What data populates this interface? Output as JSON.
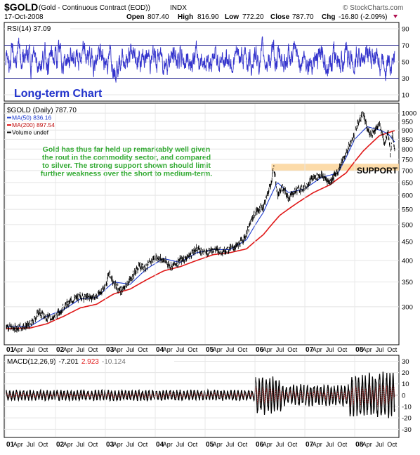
{
  "header": {
    "symbol": "$GOLD",
    "description": "(Gold - Continuous Contract (EOD))",
    "exchange": "INDX",
    "date": "17-Oct-2008",
    "copyright": "© StockCharts.com",
    "open_label": "Open",
    "open": "807.40",
    "high_label": "High",
    "high": "816.90",
    "low_label": "Low",
    "low": "772.20",
    "close_label": "Close",
    "close": "787.70",
    "chg_label": "Chg",
    "chg": "-16.80 (-2.09%)"
  },
  "rsi_panel": {
    "label": "RSI(14) 37.09",
    "ticks": [
      "90",
      "70",
      "50",
      "30",
      "10"
    ],
    "overbought": 70,
    "oversold": 30
  },
  "price_panel": {
    "title": "Long-term Chart",
    "legend": [
      {
        "label": "$GOLD (Daily) 787.70",
        "color": "#000000"
      },
      {
        "label": "MA(50) 836.16",
        "color": "#1f3ccf"
      },
      {
        "label": "MA(200) 897.54",
        "color": "#e01818"
      },
      {
        "label": "Volume undef",
        "color": "#000000"
      }
    ],
    "annotation": [
      "Gold has thus far held up remarkably well given",
      "the rout in the commodity sector, and compared",
      "to silver. The strong support shown should limit",
      "further weakness over the short to medium-term."
    ],
    "support_label": "SUPPORT",
    "y_ticks": [
      "1000",
      "950",
      "900",
      "850",
      "800",
      "750",
      "700",
      "650",
      "600",
      "550",
      "500",
      "450",
      "400",
      "350",
      "300"
    ],
    "annotation_color": "#33aa33",
    "title_color": "#2233cc"
  },
  "macd_panel": {
    "label": "MACD(12,26,9)",
    "macd": "-7.201",
    "signal": "2.923",
    "hist": "-10.124",
    "ticks": [
      "30",
      "20",
      "10",
      "0",
      "-10",
      "-20",
      "-30"
    ]
  },
  "x_axis": {
    "labels": [
      {
        "t": "01",
        "bold": true
      },
      {
        "t": "Apr"
      },
      {
        "t": "Jul"
      },
      {
        "t": "Oct"
      },
      {
        "t": "02",
        "bold": true
      },
      {
        "t": "Apr"
      },
      {
        "t": "Jul"
      },
      {
        "t": "Oct"
      },
      {
        "t": "03",
        "bold": true
      },
      {
        "t": "Apr"
      },
      {
        "t": "Jul"
      },
      {
        "t": "Oct"
      },
      {
        "t": "04",
        "bold": true
      },
      {
        "t": "Apr"
      },
      {
        "t": "Jul"
      },
      {
        "t": "Oct"
      },
      {
        "t": "05",
        "bold": true
      },
      {
        "t": "Apr"
      },
      {
        "t": "Jul"
      },
      {
        "t": "Oct"
      },
      {
        "t": "06",
        "bold": true
      },
      {
        "t": "Apr"
      },
      {
        "t": "Jul"
      },
      {
        "t": "Oct"
      },
      {
        "t": "07",
        "bold": true
      },
      {
        "t": "Apr"
      },
      {
        "t": "Jul"
      },
      {
        "t": "Oct"
      },
      {
        "t": "08",
        "bold": true
      },
      {
        "t": "Apr"
      },
      {
        "t": "Jul"
      },
      {
        "t": "Oct"
      }
    ]
  },
  "chart_data": {
    "type": "line",
    "title": "$GOLD (Gold - Continuous Contract (EOD))",
    "x_unit": "year",
    "y_scale": "log",
    "ylim": [
      240,
      1050
    ],
    "support_zone": [
      700,
      730
    ],
    "series": [
      {
        "name": "$GOLD (Daily)",
        "x": [
          2001.0,
          2001.17,
          2001.33,
          2001.5,
          2001.67,
          2001.83,
          2002.0,
          2002.17,
          2002.33,
          2002.5,
          2002.67,
          2002.83,
          2003.0,
          2003.08,
          2003.17,
          2003.33,
          2003.5,
          2003.67,
          2003.83,
          2004.0,
          2004.17,
          2004.33,
          2004.5,
          2004.67,
          2004.83,
          2005.0,
          2005.17,
          2005.33,
          2005.5,
          2005.67,
          2005.83,
          2006.0,
          2006.17,
          2006.33,
          2006.37,
          2006.45,
          2006.55,
          2006.67,
          2006.83,
          2007.0,
          2007.17,
          2007.33,
          2007.5,
          2007.67,
          2007.83,
          2008.0,
          2008.08,
          2008.17,
          2008.25,
          2008.33,
          2008.5,
          2008.6,
          2008.67,
          2008.72,
          2008.75,
          2008.8
        ],
        "values": [
          268,
          262,
          265,
          268,
          290,
          280,
          282,
          300,
          312,
          320,
          318,
          320,
          340,
          370,
          345,
          330,
          355,
          385,
          385,
          410,
          400,
          385,
          400,
          410,
          430,
          420,
          430,
          425,
          430,
          440,
          470,
          540,
          560,
          650,
          720,
          600,
          630,
          590,
          620,
          630,
          670,
          680,
          650,
          700,
          780,
          880,
          950,
          1000,
          900,
          880,
          930,
          830,
          900,
          760,
          880,
          790
        ]
      },
      {
        "name": "MA(50)",
        "x": [
          2001.0,
          2001.5,
          2001.83,
          2002.17,
          2002.5,
          2002.83,
          2003.17,
          2003.5,
          2003.83,
          2004.17,
          2004.5,
          2004.83,
          2005.17,
          2005.5,
          2005.83,
          2006.17,
          2006.45,
          2006.67,
          2007.0,
          2007.33,
          2007.67,
          2007.83,
          2008.0,
          2008.25,
          2008.5,
          2008.67,
          2008.8
        ],
        "values": [
          265,
          266,
          283,
          295,
          315,
          318,
          350,
          345,
          380,
          405,
          395,
          420,
          428,
          428,
          455,
          540,
          650,
          610,
          625,
          670,
          690,
          760,
          850,
          920,
          900,
          880,
          836
        ]
      },
      {
        "name": "MA(200)",
        "x": [
          2001.0,
          2001.5,
          2001.83,
          2002.17,
          2002.5,
          2002.83,
          2003.17,
          2003.5,
          2003.83,
          2004.17,
          2004.5,
          2004.83,
          2005.17,
          2005.5,
          2005.83,
          2006.17,
          2006.5,
          2006.83,
          2007.17,
          2007.5,
          2007.83,
          2008.17,
          2008.5,
          2008.8
        ],
        "values": [
          262,
          263,
          270,
          283,
          298,
          305,
          325,
          335,
          355,
          375,
          385,
          400,
          415,
          420,
          430,
          470,
          530,
          570,
          610,
          640,
          690,
          790,
          870,
          897
        ]
      }
    ]
  }
}
